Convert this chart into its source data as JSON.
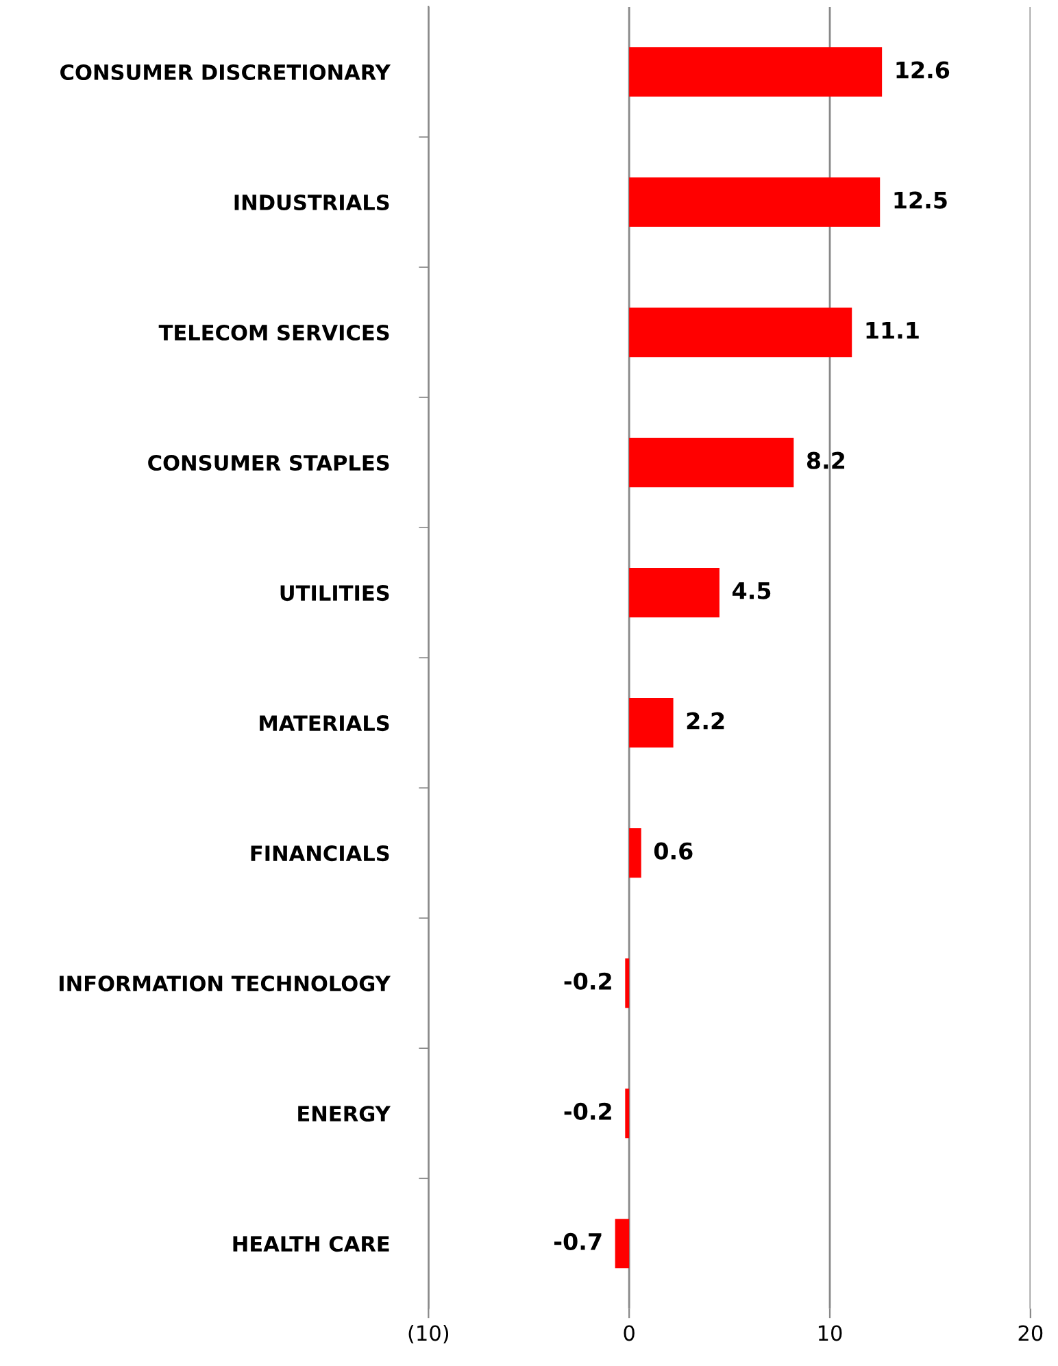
{
  "chart_data": {
    "type": "bar",
    "orientation": "horizontal",
    "categories": [
      "CONSUMER DISCRETIONARY",
      "INDUSTRIALS",
      "TELECOM SERVICES",
      "CONSUMER STAPLES",
      "UTILITIES",
      "MATERIALS",
      "FINANCIALS",
      "INFORMATION TECHNOLOGY",
      "ENERGY",
      "HEALTH CARE"
    ],
    "values": [
      12.6,
      12.5,
      11.1,
      8.2,
      4.5,
      2.2,
      0.6,
      -0.2,
      -0.2,
      -0.7
    ],
    "color": "#ff0000",
    "xlim": [
      -10,
      20
    ],
    "xticks": [
      {
        "value": -10,
        "label": "(10)"
      },
      0,
      10,
      20
    ],
    "grid": "x",
    "data_labels": true
  }
}
